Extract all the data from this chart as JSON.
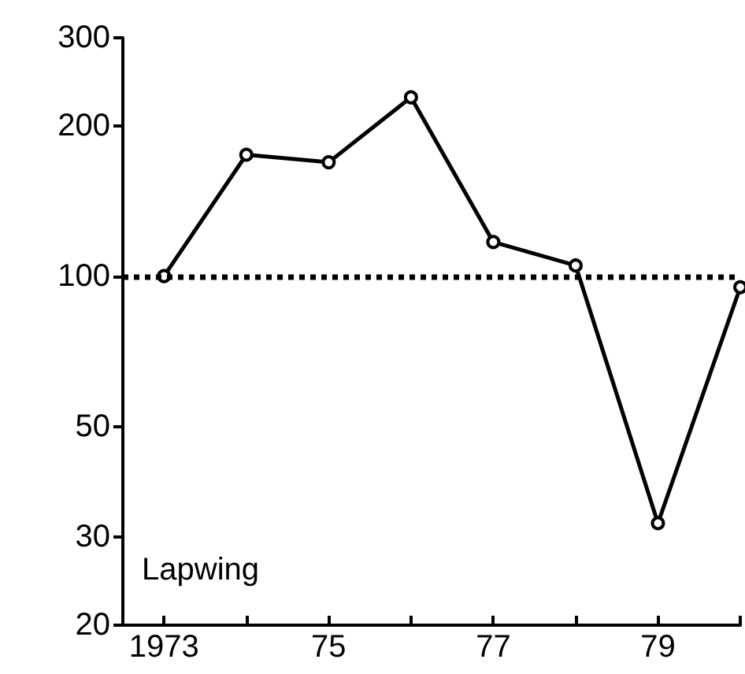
{
  "chart_data": {
    "type": "line",
    "x": [
      1973,
      1974,
      1975,
      1976,
      1977,
      1978,
      1979,
      1980
    ],
    "values": [
      100,
      175,
      169,
      228,
      117,
      105,
      32,
      95
    ],
    "color": "#000000",
    "log": "y",
    "marker": "circle",
    "line_style": "solid",
    "xlim": [
      1972.5,
      1980
    ],
    "xticks": [
      {
        "value": 1973,
        "label": "1973"
      },
      {
        "value": 1974,
        "label": null
      },
      {
        "value": 1975,
        "label": "75"
      },
      {
        "value": 1976,
        "label": null
      },
      {
        "value": 1977,
        "label": "77"
      },
      {
        "value": 1978,
        "label": null
      },
      {
        "value": 1979,
        "label": "79"
      },
      {
        "value": 1980,
        "label": null
      }
    ],
    "ylim": [
      20,
      300
    ],
    "yticks": [
      20,
      30,
      50,
      100,
      200,
      300
    ],
    "ref_lines": [
      {
        "axis": "y",
        "value": 100,
        "line_style": "dotted"
      }
    ],
    "annotations": [
      "Lapwing"
    ]
  }
}
